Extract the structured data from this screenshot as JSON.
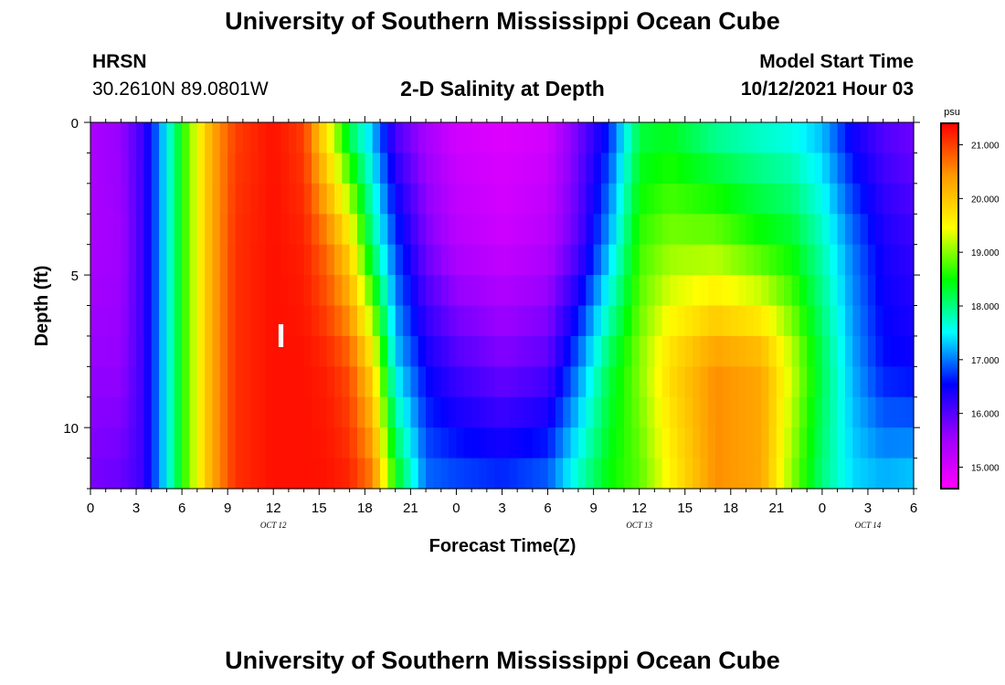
{
  "header": {
    "title": "University of Southern Mississippi Ocean Cube",
    "station": "HRSN",
    "coords": "30.2610N  89.0801W",
    "subtitle": "2-D Salinity at Depth",
    "model_start_label": "Model Start Time",
    "model_start_value": "10/12/2021 Hour 03"
  },
  "footer": {
    "title": "University of Southern Mississippi Ocean Cube"
  },
  "chart_data": {
    "type": "heatmap",
    "title": "2-D Salinity at Depth",
    "xlabel": "Forecast Time(Z)",
    "ylabel": "Depth (ft)",
    "x_range_hours": [
      0,
      54
    ],
    "ylim": [
      0,
      12
    ],
    "x_tick_labels": [
      "0",
      "3",
      "6",
      "9",
      "12",
      "15",
      "18",
      "21",
      "0",
      "3",
      "6",
      "9",
      "12",
      "15",
      "18",
      "21",
      "0",
      "3",
      "6"
    ],
    "y_tick_labels": [
      "0",
      "5",
      "10"
    ],
    "y_tick_values": [
      0,
      5,
      10
    ],
    "date_labels": [
      {
        "text": "OCT 12",
        "hour": 12
      },
      {
        "text": "OCT 13",
        "hour": 36
      },
      {
        "text": "OCT 14",
        "hour": 51
      }
    ],
    "marker": {
      "text": "I",
      "hour": 12.5,
      "depth": 7
    },
    "colorbar": {
      "unit": "psu",
      "min": 14.6,
      "max": 21.4,
      "ticks": [
        21.0,
        20.0,
        19.0,
        18.0,
        17.0,
        16.0,
        15.0
      ],
      "tick_labels": [
        "21.000",
        "20.000",
        "19.000",
        "18.000",
        "17.000",
        "16.000",
        "15.000"
      ],
      "colors": [
        "#ff00ff",
        "#9900ff",
        "#0000ff",
        "#00ffff",
        "#00ff00",
        "#ffff00",
        "#ff9900",
        "#ff0000"
      ]
    },
    "profile_hours": [
      0,
      2,
      3.5,
      5,
      6.5,
      8,
      9.5,
      12,
      14,
      15.5,
      17,
      18.5,
      20,
      22,
      24,
      27,
      30,
      32,
      34,
      36,
      38,
      41,
      44,
      46,
      48,
      50,
      52,
      54
    ],
    "profile_depths": [
      0,
      4,
      8,
      12
    ],
    "salinity": [
      [
        15.4,
        15.4,
        15.6,
        15.8
      ],
      [
        15.6,
        15.5,
        15.6,
        15.9
      ],
      [
        16.2,
        16.2,
        16.2,
        16.2
      ],
      [
        17.5,
        17.5,
        17.5,
        17.5
      ],
      [
        19.0,
        19.0,
        19.0,
        19.0
      ],
      [
        20.3,
        20.3,
        20.3,
        20.3
      ],
      [
        21.0,
        21.1,
        21.1,
        21.1
      ],
      [
        21.3,
        21.3,
        21.3,
        21.3
      ],
      [
        21.0,
        21.2,
        21.3,
        21.3
      ],
      [
        19.5,
        20.7,
        21.2,
        21.3
      ],
      [
        18.0,
        19.8,
        20.9,
        21.2
      ],
      [
        17.2,
        18.0,
        19.8,
        20.7
      ],
      [
        16.0,
        16.8,
        17.4,
        18.6
      ],
      [
        15.4,
        15.8,
        16.5,
        17.0
      ],
      [
        15.0,
        15.3,
        16.1,
        16.9
      ],
      [
        14.9,
        15.1,
        15.8,
        16.8
      ],
      [
        15.0,
        15.3,
        16.0,
        17.0
      ],
      [
        15.8,
        16.0,
        17.0,
        17.8
      ],
      [
        16.6,
        17.2,
        18.2,
        18.5
      ],
      [
        18.2,
        18.7,
        19.0,
        18.8
      ],
      [
        18.3,
        19.0,
        19.8,
        19.5
      ],
      [
        17.8,
        19.0,
        20.5,
        20.5
      ],
      [
        17.6,
        18.6,
        20.3,
        20.3
      ],
      [
        17.5,
        18.4,
        19.3,
        19.0
      ],
      [
        17.2,
        17.8,
        18.2,
        18.0
      ],
      [
        16.4,
        17.0,
        17.2,
        17.4
      ],
      [
        16.0,
        16.4,
        16.6,
        17.3
      ],
      [
        15.8,
        16.2,
        16.5,
        17.4
      ]
    ]
  }
}
